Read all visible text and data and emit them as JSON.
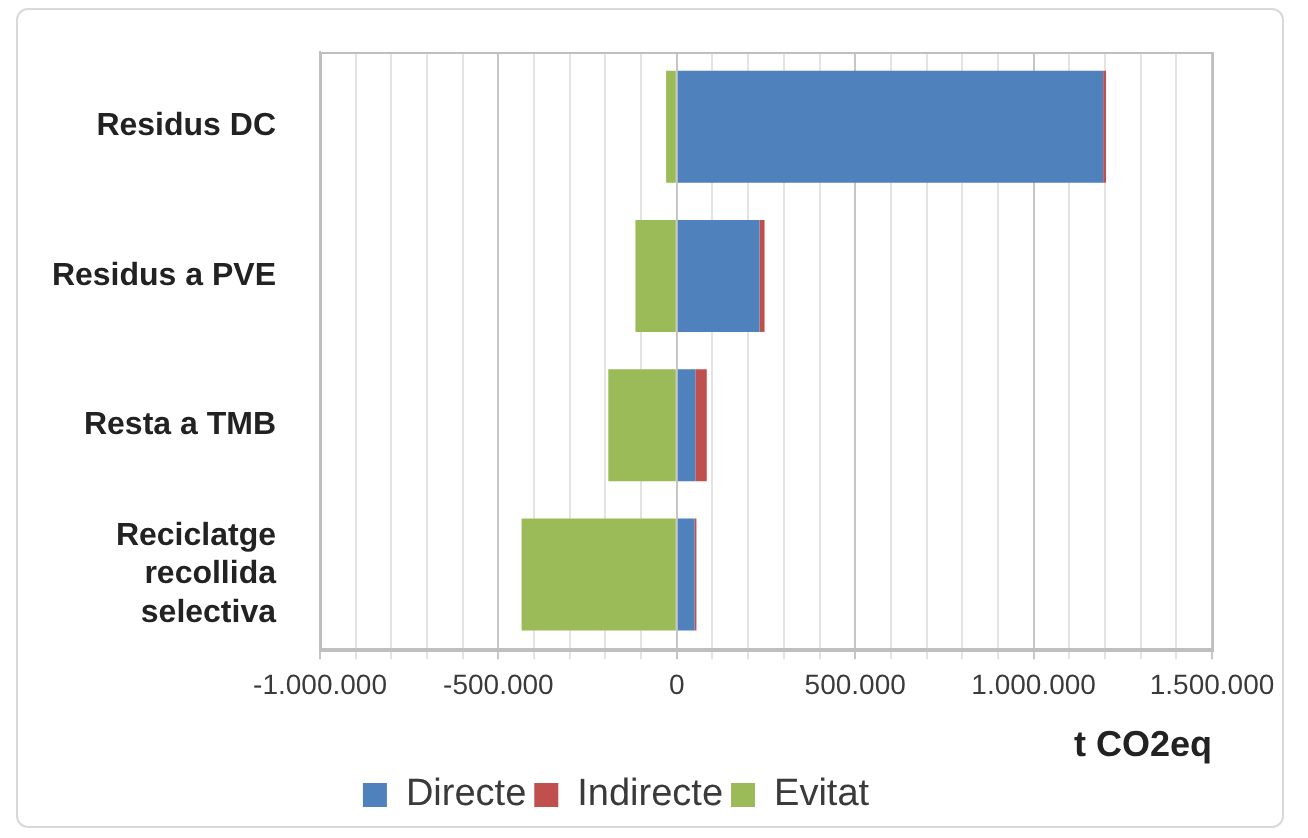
{
  "chart_data": {
    "type": "bar",
    "orientation": "horizontal",
    "stacked": true,
    "categories": [
      "Residus DC",
      "Residus a PVE",
      "Resta a TMB",
      "Reciclatge recollida selectiva"
    ],
    "series": [
      {
        "name": "Directe",
        "color": "#4f81bd",
        "values": [
          1195000,
          232000,
          52000,
          50000
        ]
      },
      {
        "name": "Indirecte",
        "color": "#c0504d",
        "values": [
          8000,
          14000,
          32000,
          5000
        ]
      },
      {
        "name": "Evitat",
        "color": "#9bbb59",
        "values": [
          -30000,
          -116000,
          -192000,
          -435000
        ]
      }
    ],
    "xlabel": "t CO2eq",
    "xlim": [
      -1000000,
      1500000
    ],
    "xticks": [
      {
        "value": -1000000,
        "label": "-1.000.000"
      },
      {
        "value": -900000,
        "label": null
      },
      {
        "value": -800000,
        "label": null
      },
      {
        "value": -700000,
        "label": null
      },
      {
        "value": -600000,
        "label": null
      },
      {
        "value": -500000,
        "label": "-500.000"
      },
      {
        "value": -400000,
        "label": null
      },
      {
        "value": -300000,
        "label": null
      },
      {
        "value": -200000,
        "label": null
      },
      {
        "value": -100000,
        "label": null
      },
      0,
      {
        "value": 100000,
        "label": null
      },
      {
        "value": 200000,
        "label": null
      },
      {
        "value": 300000,
        "label": null
      },
      {
        "value": 400000,
        "label": null
      },
      {
        "value": 500000,
        "label": "500.000"
      },
      {
        "value": 600000,
        "label": null
      },
      {
        "value": 700000,
        "label": null
      },
      {
        "value": 800000,
        "label": null
      },
      {
        "value": 900000,
        "label": null
      },
      {
        "value": 1000000,
        "label": "1.000.000"
      },
      {
        "value": 1100000,
        "label": null
      },
      {
        "value": 1200000,
        "label": null
      },
      {
        "value": 1300000,
        "label": null
      },
      {
        "value": 1400000,
        "label": null
      },
      {
        "value": 1500000,
        "label": "1.500.000"
      }
    ],
    "grid": "x",
    "legend": "bottom"
  }
}
